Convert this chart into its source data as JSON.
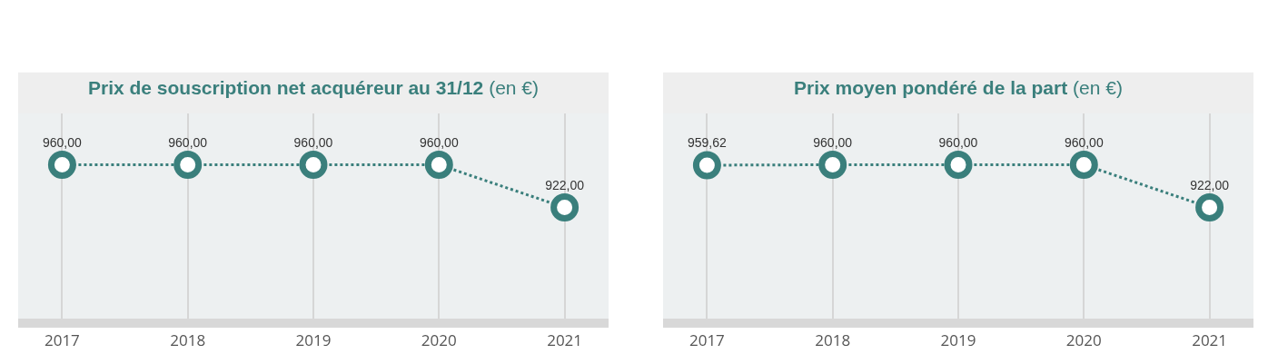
{
  "chart_data": [
    {
      "type": "line",
      "title": "Prix de souscription net acquéreur au 31/12",
      "subtitle": "(en €)",
      "categories": [
        "2017",
        "2018",
        "2019",
        "2020",
        "2021"
      ],
      "series": [
        {
          "color": "#3a7f7c",
          "values": [
            960,
            960,
            960,
            960,
            922
          ],
          "value_labels": [
            "960,00",
            "960,00",
            "960,00",
            "960,00",
            "922,00"
          ]
        }
      ],
      "marker": "circle",
      "line_style": "dotted",
      "grid": "x",
      "legend": false
    },
    {
      "type": "line",
      "title": "Prix moyen pondéré de la part",
      "subtitle": "(en €)",
      "categories": [
        "2017",
        "2018",
        "2019",
        "2020",
        "2021"
      ],
      "series": [
        {
          "color": "#3a7f7c",
          "values": [
            959.62,
            960,
            960,
            960,
            922
          ],
          "value_labels": [
            "959,62",
            "960,00",
            "960,00",
            "960,00",
            "922,00"
          ]
        }
      ],
      "marker": "circle",
      "line_style": "dotted",
      "grid": "x",
      "legend": false
    }
  ]
}
